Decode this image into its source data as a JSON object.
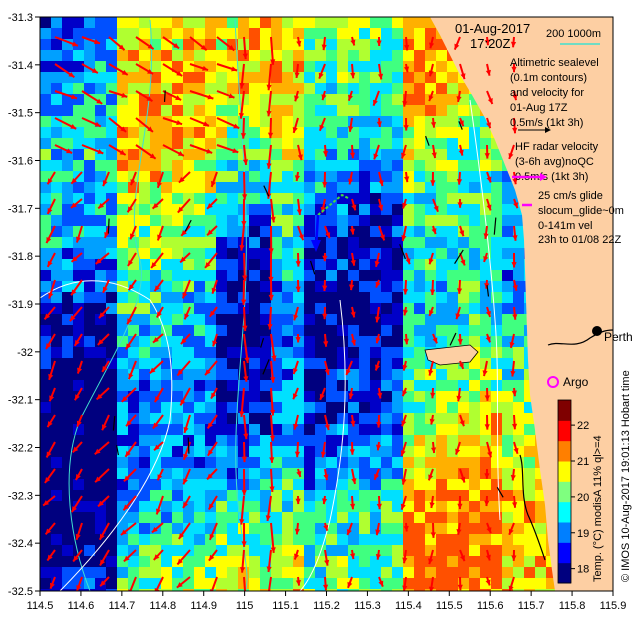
{
  "header": {
    "date": "01-Aug-2017",
    "time": "17:20Z",
    "bathy_label": "200  1000m"
  },
  "legend": {
    "altimetry": [
      "Altimetric sealevel",
      "(0.1m contours)",
      "and velocity for",
      "01-Aug 17Z",
      "0.5m/s (1kt 3h)"
    ],
    "hf_radar": [
      "HF radar velocity",
      "(3-6h avg)noQC",
      "0.5m/s (1kt 3h)"
    ],
    "glider": [
      "25 cm/s glide",
      "slocum_glide~0m",
      "0-141m vel",
      "23h to 01/08 22Z"
    ]
  },
  "places": {
    "perth": "Perth",
    "argo": "Argo"
  },
  "colorbar": {
    "label": "Temp. (°C) modisA 11% ql>=4",
    "ticks": [
      "18",
      "19",
      "20",
      "21",
      "22"
    ],
    "vmin": 17.6,
    "vmax": 22.7,
    "colors": [
      "#00007f",
      "#0000ff",
      "#007fff",
      "#00ffff",
      "#7fff7f",
      "#ffff00",
      "#ff7f00",
      "#ff0000",
      "#7f0000"
    ]
  },
  "credit": "© IMOS 10-Aug-2017 19:01:13 Hobart time",
  "axes": {
    "x_ticks": [
      "114.5",
      "114.6",
      "114.7",
      "114.8",
      "114.9",
      "115",
      "115.1",
      "115.2",
      "115.3",
      "115.4",
      "115.5",
      "115.6",
      "115.7",
      "115.8",
      "115.9"
    ],
    "y_ticks": [
      "-31.3",
      "-31.4",
      "-31.5",
      "-31.6",
      "-31.7",
      "-31.8",
      "-31.9",
      "-32",
      "-32.1",
      "-32.2",
      "-32.3",
      "-32.4",
      "-32.5"
    ],
    "lon_range": [
      114.5,
      115.9
    ],
    "lat_range": [
      -32.5,
      -31.3
    ]
  },
  "colors": {
    "land": "#fdcfa3",
    "vector": "#ff0000",
    "altimetry_vector": "#000000",
    "hf_vector": "#ff00ff",
    "glider_vector": "#0000ff",
    "bathy_200": "#40e0d0",
    "bathy_1000": "#ffffff",
    "argo": "#ff00ff"
  }
}
